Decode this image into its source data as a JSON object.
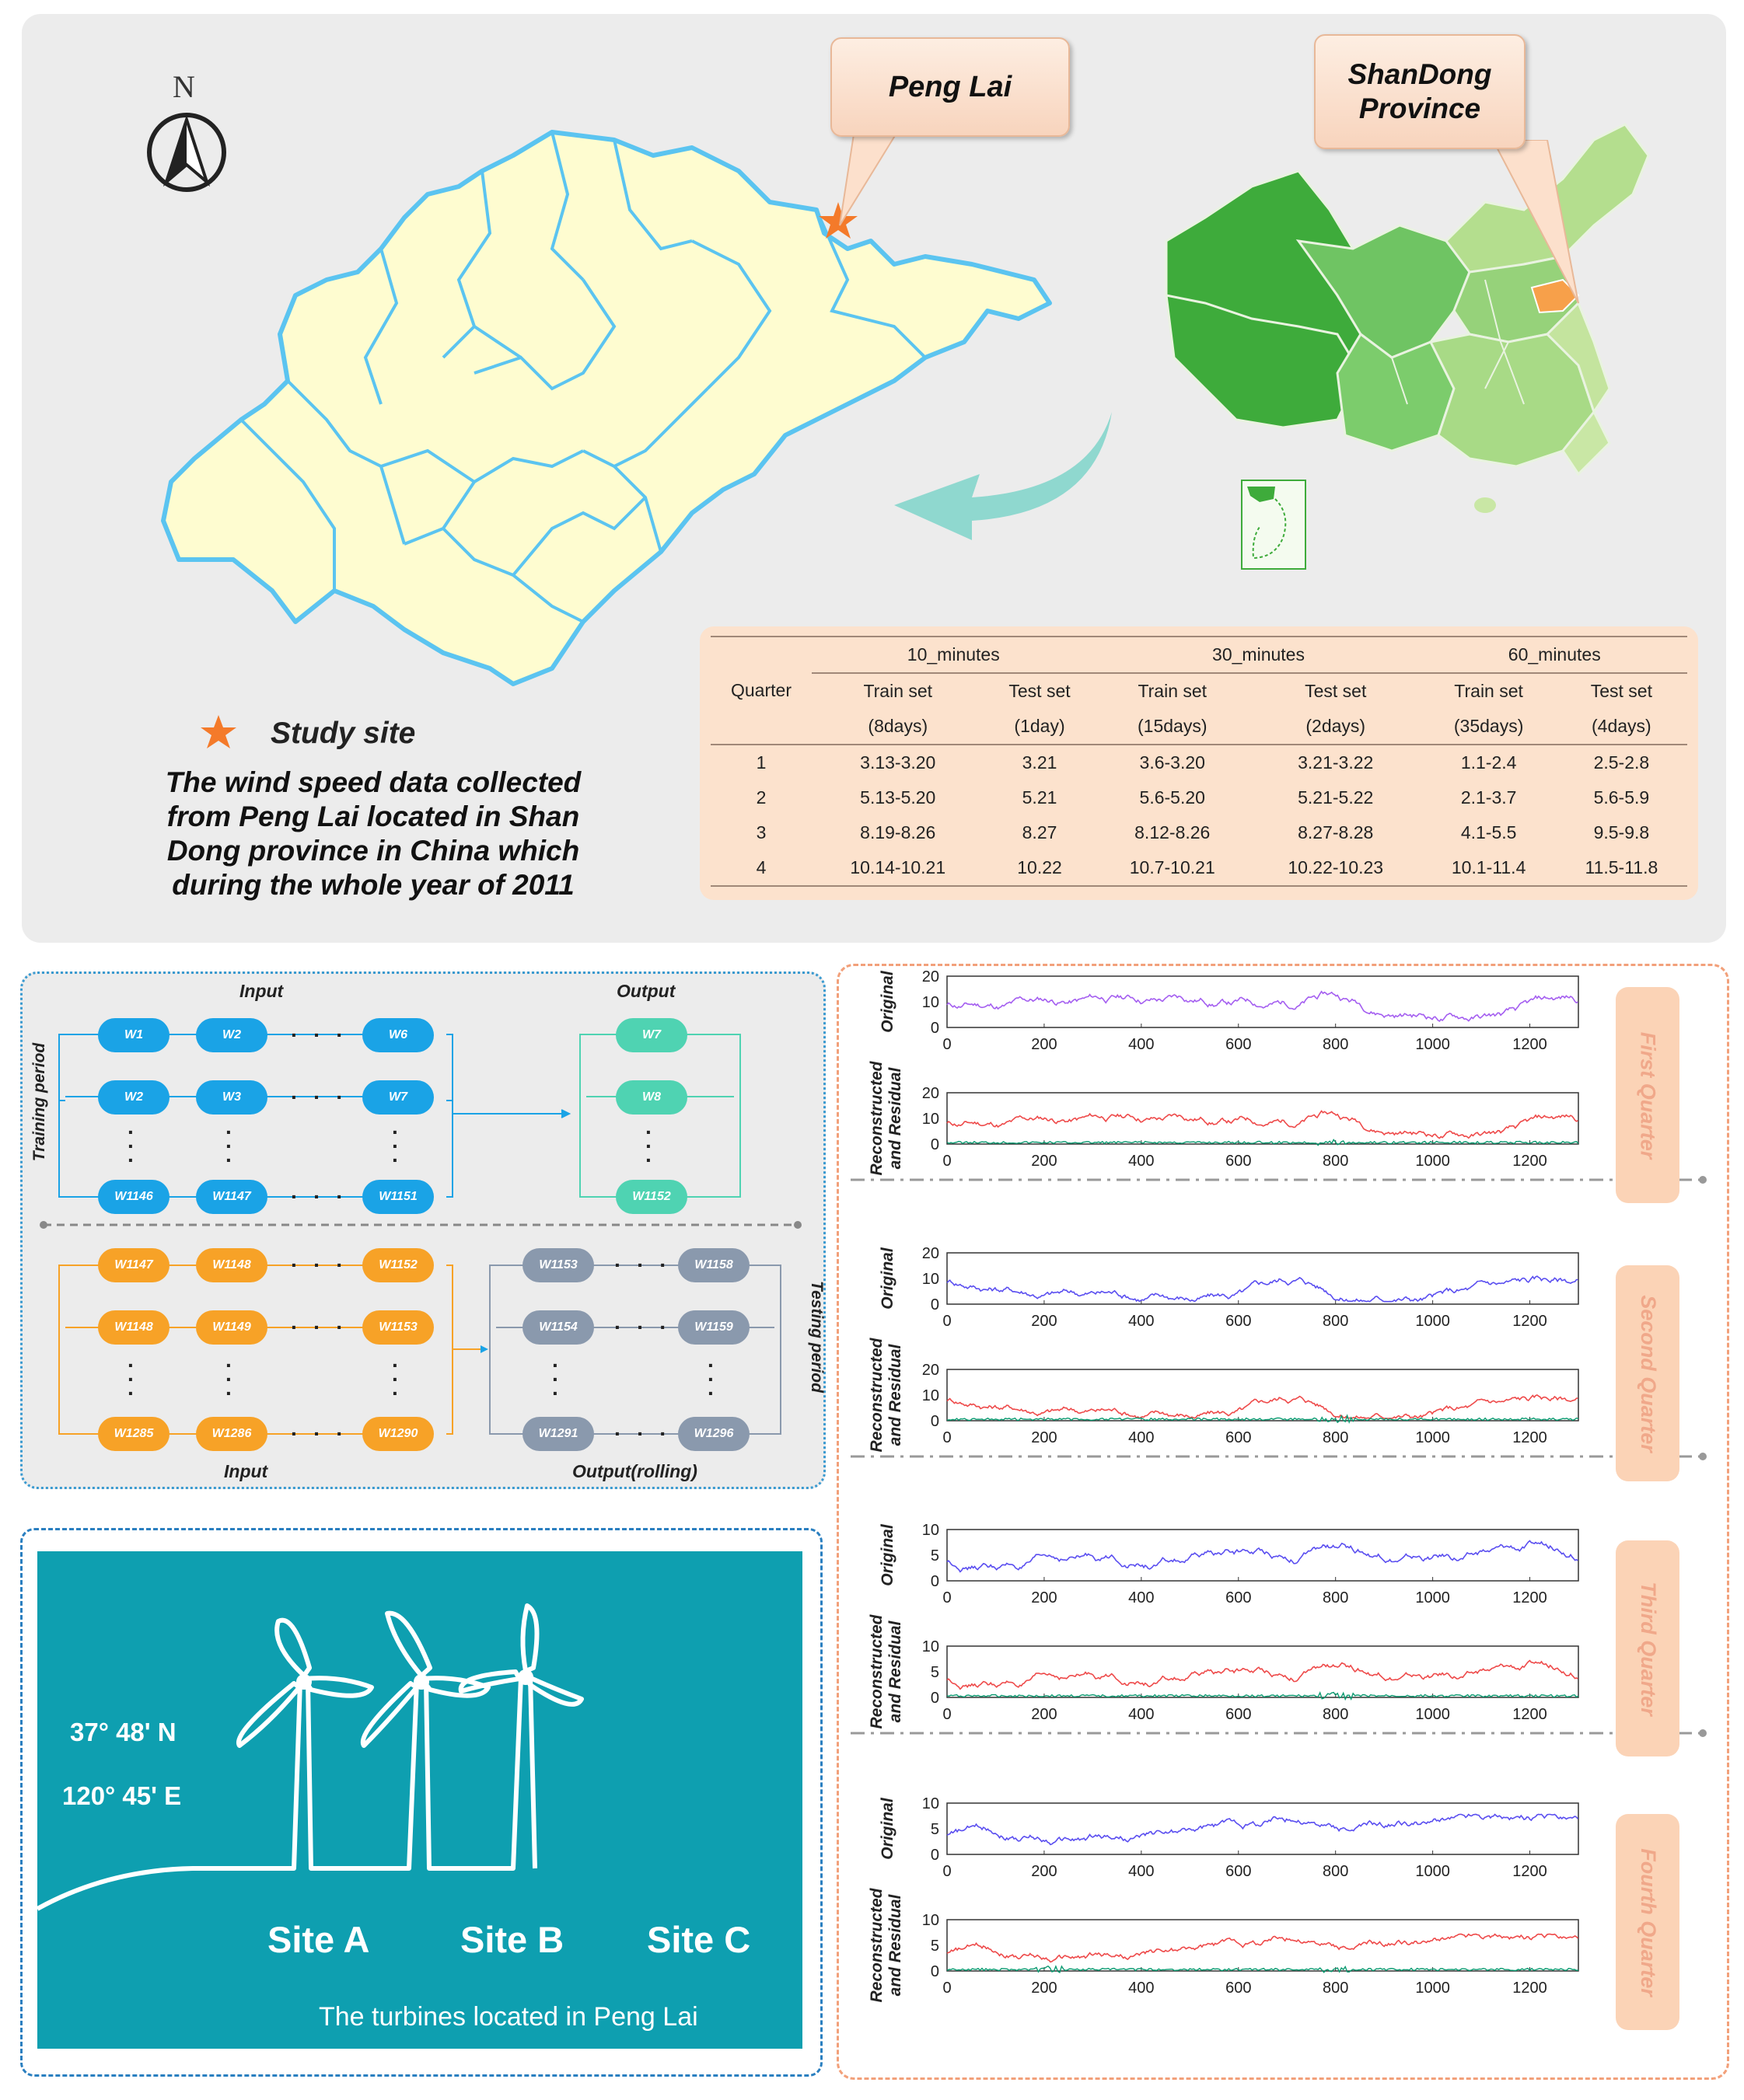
{
  "north_label": "N",
  "callouts": {
    "penglai": "Peng Lai",
    "shandong": "ShanDong Province"
  },
  "study_site_label": "Study site",
  "caption": [
    "The wind speed data collected",
    "from Peng Lai located in Shan",
    "Dong province in China which",
    "during the whole year of 2011"
  ],
  "colors": {
    "map_fill": "#fefcd0",
    "map_border": "#5bc4f0",
    "star": "#f47a2a",
    "turbine_bg": "#0e9fb0",
    "arrow": "#8fd8cf"
  },
  "table": {
    "quarter_header": "Quarter",
    "groups": [
      "10_minutes",
      "30_minutes",
      "60_minutes"
    ],
    "sub_headers": [
      "Train set",
      "Test set",
      "Train set",
      "Test set",
      "Train set",
      "Test set"
    ],
    "sub_periods": [
      "(8days)",
      "(1day)",
      "(15days)",
      "(2days)",
      "(35days)",
      "(4days)"
    ],
    "rows": [
      [
        "1",
        "3.13-3.20",
        "3.21",
        "3.6-3.20",
        "3.21-3.22",
        "1.1-2.4",
        "2.5-2.8"
      ],
      [
        "2",
        "5.13-5.20",
        "5.21",
        "5.6-5.20",
        "5.21-5.22",
        "2.1-3.7",
        "5.6-5.9"
      ],
      [
        "3",
        "8.19-8.26",
        "8.27",
        "8.12-8.26",
        "8.27-8.28",
        "4.1-5.5",
        "9.5-9.8"
      ],
      [
        "4",
        "10.14-10.21",
        "10.22",
        "10.7-10.21",
        "10.22-10.23",
        "10.1-11.4",
        "11.5-11.8"
      ]
    ]
  },
  "rolling": {
    "input_top": "Input",
    "output_top": "Output",
    "training_period": "Training period",
    "testing_period": "Testing period",
    "input_bottom": "Input",
    "output_bottom": "Output(rolling)",
    "dots": "· · ·",
    "train_in": [
      [
        "W1",
        "W2",
        "W6"
      ],
      [
        "W2",
        "W3",
        "W7"
      ],
      [
        "W1146",
        "W1147",
        "W1151"
      ]
    ],
    "train_out": [
      "W7",
      "W8",
      "W1152"
    ],
    "test_in": [
      [
        "W1147",
        "W1148",
        "W1152"
      ],
      [
        "W1148",
        "W1149",
        "W1153"
      ],
      [
        "W1285",
        "W1286",
        "W1290"
      ]
    ],
    "test_out": [
      [
        "W1153",
        "W1158"
      ],
      [
        "W1154",
        "W1159"
      ],
      [
        "W1291",
        "W1296"
      ]
    ]
  },
  "turbines": {
    "lat": "37° 48' N",
    "lon": "120° 45' E",
    "sites": [
      "Site A",
      "Site B",
      "Site C"
    ],
    "caption": "The turbines located in Peng Lai"
  },
  "quarters": [
    {
      "name": "First Quarter",
      "orig_ymax": 20,
      "orig_ticks": [
        "0",
        "10",
        "20"
      ],
      "rec_ticks": [
        "0",
        "10",
        "20"
      ],
      "color": "#a45ef0",
      "peak": 19
    },
    {
      "name": "Second Quarter",
      "orig_ymax": 20,
      "orig_ticks": [
        "0",
        "10",
        "20"
      ],
      "rec_ticks": [
        "0",
        "10",
        "20"
      ],
      "color": "#5a4ef0",
      "peak": 20
    },
    {
      "name": "Third Quarter",
      "orig_ymax": 10,
      "orig_ticks": [
        "0",
        "5",
        "10"
      ],
      "rec_ticks": [
        "0",
        "5",
        "10"
      ],
      "color": "#5a4ef0",
      "peak": 8
    },
    {
      "name": "Fourth Quarter",
      "orig_ymax": 12,
      "orig_ticks": [
        "0",
        "5",
        "10"
      ],
      "rec_ticks": [
        "0",
        "5",
        "10"
      ],
      "color": "#5a4ef0",
      "peak": 11
    }
  ],
  "plot_labels": {
    "original": "Original",
    "reconstructed": "Reconstructed",
    "residual": "and Residual"
  },
  "x_ticks": [
    "0",
    "200",
    "400",
    "600",
    "800",
    "1000",
    "1200"
  ],
  "x_max": 1300
}
